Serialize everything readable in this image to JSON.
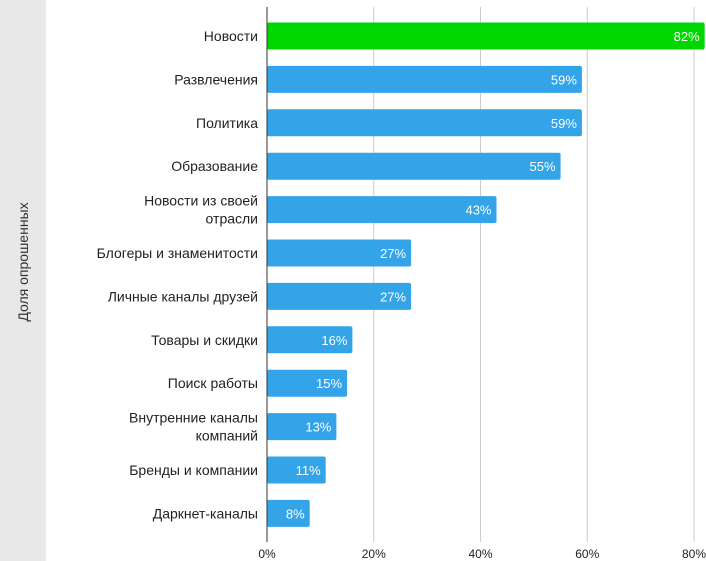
{
  "chart_data": {
    "type": "bar",
    "orientation": "horizontal",
    "ylabel": "Доля опрошенных",
    "categories": [
      [
        "Новости"
      ],
      [
        "Развлечения"
      ],
      [
        "Политика"
      ],
      [
        "Образование"
      ],
      [
        "Новости из своей",
        "отрасли"
      ],
      [
        "Блогеры и знаменитости"
      ],
      [
        "Личные каналы друзей"
      ],
      [
        "Товары и скидки"
      ],
      [
        "Поиск работы"
      ],
      [
        "Внутренние каналы",
        "компаний"
      ],
      [
        "Бренды и компании"
      ],
      [
        "Даркнет-каналы"
      ]
    ],
    "values": [
      82,
      59,
      59,
      55,
      43,
      27,
      27,
      16,
      15,
      13,
      11,
      8
    ],
    "value_labels": [
      "82%",
      "59%",
      "59%",
      "55%",
      "43%",
      "27%",
      "27%",
      "16%",
      "15%",
      "13%",
      "11%",
      "8%"
    ],
    "xticks": [
      "0%",
      "20%",
      "40%",
      "60%",
      "80%"
    ],
    "xtick_values": [
      0,
      20,
      40,
      60,
      80
    ],
    "xlim": [
      0,
      80
    ],
    "grid": true,
    "highlight_color": "#00d600",
    "bar_color": "#34a4e8",
    "grid_color": "#cccccc"
  }
}
